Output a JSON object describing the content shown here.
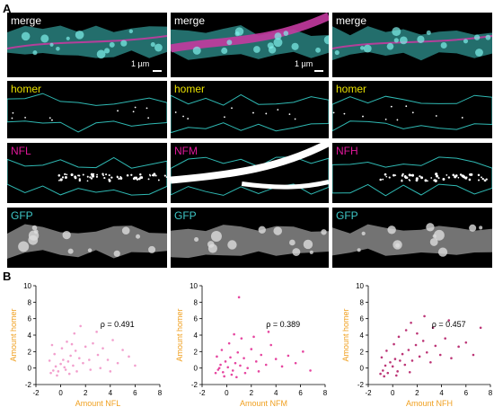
{
  "panels": {
    "a": "A",
    "b": "B"
  },
  "rows": [
    {
      "labels": [
        "merge",
        "merge",
        "merge"
      ],
      "color": "#ffffff",
      "type": "merge"
    },
    {
      "labels": [
        "homer",
        "homer",
        "homer"
      ],
      "color": "#e8e000",
      "type": "homer"
    },
    {
      "labels": [
        "NFL",
        "NFM",
        "NFH"
      ],
      "color": "#e0189a",
      "type": "nf"
    },
    {
      "labels": [
        "GFP",
        "GFP",
        "GFP"
      ],
      "color": "#3ec8c8",
      "type": "gfp"
    }
  ],
  "scalebar": {
    "label": "1 µm"
  },
  "colors": {
    "gfp": "#3fc9c5",
    "magenta": "#c43aa0",
    "outline": "#2fb9b3",
    "axis_label": "#f0a020"
  },
  "chart_data": [
    {
      "type": "scatter",
      "xlabel": "Amount NFL",
      "ylabel": "Amount homer",
      "annotation": "ρ = 0.491",
      "xlim": [
        -2,
        8
      ],
      "ylim": [
        -2,
        10
      ],
      "xticks": [
        -2,
        0,
        2,
        4,
        6,
        8
      ],
      "yticks": [
        -2,
        0,
        2,
        4,
        6,
        8,
        10
      ],
      "color": "#f08ec4",
      "points": [
        [
          -0.8,
          -0.6
        ],
        [
          -0.6,
          -0.3
        ],
        [
          -0.4,
          0.2
        ],
        [
          -0.2,
          -0.4
        ],
        [
          0,
          0.5
        ],
        [
          0.2,
          1.0
        ],
        [
          0.4,
          -0.2
        ],
        [
          0.6,
          0.8
        ],
        [
          0.8,
          1.5
        ],
        [
          1.0,
          0.3
        ],
        [
          1.2,
          2.1
        ],
        [
          1.5,
          1.2
        ],
        [
          1.8,
          0.6
        ],
        [
          2.0,
          2.6
        ],
        [
          2.3,
          1.0
        ],
        [
          2.6,
          3.0
        ],
        [
          3.0,
          1.6
        ],
        [
          3.4,
          2.4
        ],
        [
          3.8,
          1.0
        ],
        [
          4.2,
          3.4
        ],
        [
          4.6,
          0.6
        ],
        [
          5.0,
          2.2
        ],
        [
          5.5,
          1.4
        ],
        [
          6.0,
          0.3
        ],
        [
          -0.9,
          0.9
        ],
        [
          -0.5,
          1.7
        ],
        [
          0.1,
          2.4
        ],
        [
          0.5,
          3.2
        ],
        [
          1.1,
          4.2
        ],
        [
          1.6,
          5.1
        ],
        [
          0.3,
          0.1
        ],
        [
          -0.3,
          -0.9
        ],
        [
          0.7,
          -0.7
        ],
        [
          1.3,
          -0.4
        ],
        [
          2.4,
          -0.2
        ],
        [
          -0.7,
          2.8
        ],
        [
          0.9,
          2.9
        ],
        [
          3.2,
          0.0
        ],
        [
          4.0,
          -0.4
        ],
        [
          2.9,
          4.4
        ]
      ]
    },
    {
      "type": "scatter",
      "xlabel": "Amount NFM",
      "ylabel": "Amount homer",
      "annotation": "ρ = 0.389",
      "xlim": [
        -2,
        8
      ],
      "ylim": [
        -2,
        10
      ],
      "xticks": [
        -2,
        0,
        2,
        4,
        6,
        8
      ],
      "yticks": [
        -2,
        0,
        2,
        4,
        6,
        8,
        10
      ],
      "color": "#e2268f",
      "points": [
        [
          -0.9,
          -0.6
        ],
        [
          -0.7,
          -0.2
        ],
        [
          -0.5,
          0.4
        ],
        [
          -0.3,
          -0.5
        ],
        [
          -0.1,
          0.8
        ],
        [
          0.1,
          0.1
        ],
        [
          0.3,
          1.3
        ],
        [
          0.5,
          -0.3
        ],
        [
          0.7,
          0.6
        ],
        [
          0.9,
          1.9
        ],
        [
          1.1,
          0.3
        ],
        [
          1.4,
          1.2
        ],
        [
          1.7,
          0.0
        ],
        [
          2.0,
          2.3
        ],
        [
          2.4,
          0.8
        ],
        [
          2.8,
          1.6
        ],
        [
          3.2,
          0.4
        ],
        [
          3.6,
          2.8
        ],
        [
          4.0,
          1.1
        ],
        [
          4.5,
          0.2
        ],
        [
          5.0,
          1.5
        ],
        [
          5.6,
          0.6
        ],
        [
          6.2,
          2.0
        ],
        [
          6.8,
          -0.3
        ],
        [
          -0.8,
          1.4
        ],
        [
          -0.4,
          2.2
        ],
        [
          0.2,
          3.0
        ],
        [
          0.6,
          4.1
        ],
        [
          1.2,
          3.6
        ],
        [
          1.0,
          8.6
        ],
        [
          -0.6,
          0.0
        ],
        [
          0.4,
          -0.8
        ],
        [
          1.5,
          -0.6
        ],
        [
          2.6,
          -0.4
        ],
        [
          3.4,
          4.4
        ],
        [
          -0.2,
          -1.0
        ],
        [
          0.8,
          -1.1
        ],
        [
          2.2,
          3.8
        ]
      ]
    },
    {
      "type": "scatter",
      "xlabel": "Amount NFH",
      "ylabel": "Amount homer",
      "annotation": "ρ = 0.457",
      "xlim": [
        -2,
        8
      ],
      "ylim": [
        -2,
        10
      ],
      "xticks": [
        -2,
        0,
        2,
        4,
        6,
        8
      ],
      "yticks": [
        -2,
        0,
        2,
        4,
        6,
        8,
        10
      ],
      "color": "#b0125e",
      "points": [
        [
          -1.0,
          -0.7
        ],
        [
          -0.8,
          -0.3
        ],
        [
          -0.6,
          0.3
        ],
        [
          -0.4,
          -0.6
        ],
        [
          -0.2,
          0.7
        ],
        [
          0,
          0.2
        ],
        [
          0.2,
          1.1
        ],
        [
          0.4,
          -0.4
        ],
        [
          0.6,
          0.9
        ],
        [
          0.8,
          1.7
        ],
        [
          1.0,
          0.4
        ],
        [
          1.3,
          2.2
        ],
        [
          1.6,
          0.9
        ],
        [
          1.9,
          2.8
        ],
        [
          2.2,
          1.4
        ],
        [
          2.5,
          3.3
        ],
        [
          2.8,
          1.9
        ],
        [
          3.1,
          0.7
        ],
        [
          3.5,
          2.7
        ],
        [
          3.9,
          1.6
        ],
        [
          4.3,
          3.6
        ],
        [
          4.8,
          1.2
        ],
        [
          5.4,
          2.6
        ],
        [
          6.0,
          3.1
        ],
        [
          6.6,
          1.6
        ],
        [
          7.2,
          4.9
        ],
        [
          -0.9,
          1.3
        ],
        [
          -0.5,
          2.1
        ],
        [
          0.1,
          2.9
        ],
        [
          0.5,
          3.8
        ],
        [
          1.1,
          4.6
        ],
        [
          1.5,
          5.5
        ],
        [
          2.0,
          4.2
        ],
        [
          2.6,
          6.3
        ],
        [
          -0.7,
          -1.0
        ],
        [
          0.3,
          -0.9
        ],
        [
          1.4,
          -0.5
        ],
        [
          3.3,
          4.9
        ],
        [
          4.6,
          5.8
        ]
      ]
    }
  ]
}
